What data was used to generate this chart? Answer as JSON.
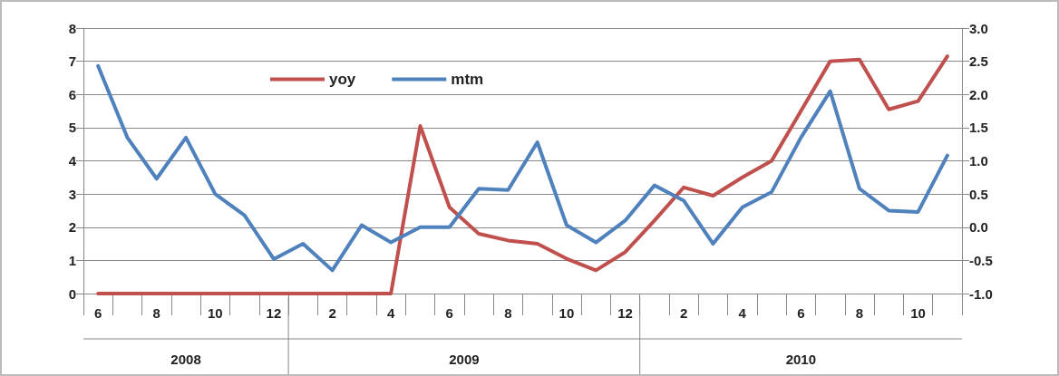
{
  "chart_data": {
    "type": "line",
    "categories": [
      "6",
      null,
      "8",
      null,
      "10",
      null,
      "12",
      null,
      "2",
      null,
      "4",
      null,
      "6",
      null,
      "8",
      null,
      "10",
      null,
      "12",
      null,
      "2",
      null,
      "4",
      null,
      "6",
      null,
      "8",
      null,
      "10",
      null
    ],
    "series": [
      {
        "name": "yoy",
        "color": "#c0504d",
        "values": [
          0,
          0,
          0,
          0,
          0,
          0,
          0,
          0,
          0,
          0,
          0,
          5.05,
          2.6,
          1.8,
          1.6,
          1.5,
          1.05,
          0.7,
          1.25,
          2.2,
          3.2,
          2.95,
          3.5,
          4.0,
          5.5,
          7.0,
          7.05,
          5.55,
          5.8,
          7.15
        ]
      },
      {
        "name": "mtm",
        "color": "#4f81bd",
        "axis": "y2",
        "values": [
          2.43,
          1.35,
          0.73,
          1.35,
          0.5,
          0.18,
          -0.48,
          -0.25,
          -0.65,
          0.03,
          -0.23,
          0.0,
          0.0,
          0.58,
          0.56,
          1.28,
          0.03,
          -0.23,
          0.1,
          0.63,
          0.4,
          -0.25,
          0.3,
          0.53,
          1.35,
          2.05,
          0.58,
          0.25,
          0.23,
          1.08
        ]
      }
    ],
    "ylim": [
      0,
      8
    ],
    "yticks": [
      0,
      1,
      2,
      3,
      4,
      5,
      6,
      7,
      8
    ],
    "y2lim": [
      -1,
      3
    ],
    "y2ticks": [
      {
        "value": -1,
        "label": "-1.0"
      },
      {
        "value": -0.5,
        "label": "-0.5"
      },
      {
        "value": 0,
        "label": "0.0"
      },
      {
        "value": 0.5,
        "label": "0.5"
      },
      {
        "value": 1,
        "label": "1.0"
      },
      {
        "value": 1.5,
        "label": "1.5"
      },
      {
        "value": 2,
        "label": "2.0"
      },
      {
        "value": 2.5,
        "label": "2.5"
      },
      {
        "value": 3,
        "label": "3.0"
      }
    ],
    "annotations": [
      "2008",
      "2009",
      "2010"
    ],
    "grid": "y",
    "legend": "top left",
    "marker": "none",
    "line_style": "solid"
  }
}
